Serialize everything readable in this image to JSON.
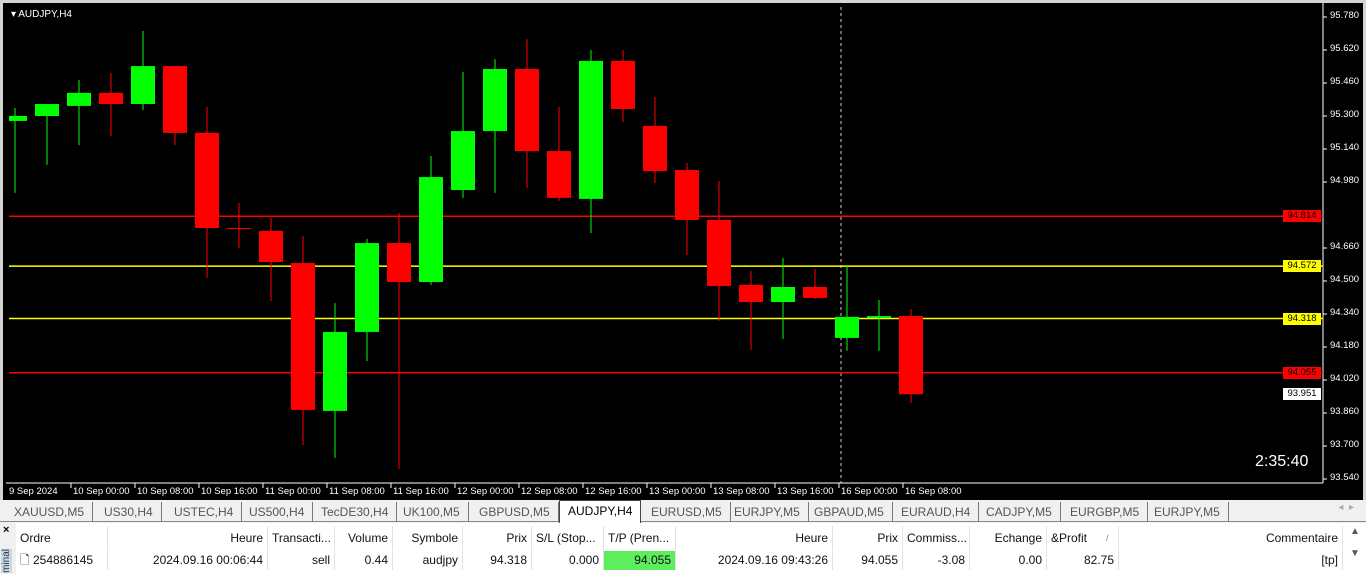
{
  "chart": {
    "symbol_label": "AUDJPY,H4",
    "countdown": "2:35:40",
    "price_axis": [
      "95.780",
      "95.620",
      "95.460",
      "95.300",
      "95.140",
      "94.980",
      "94.660",
      "94.500",
      "94.340",
      "94.180",
      "94.020",
      "93.860",
      "93.700",
      "93.540"
    ],
    "time_axis": [
      "9 Sep 2024",
      "10 Sep 00:00",
      "10 Sep 08:00",
      "10 Sep 16:00",
      "11 Sep 00:00",
      "11 Sep 08:00",
      "11 Sep 16:00",
      "12 Sep 00:00",
      "12 Sep 08:00",
      "12 Sep 16:00",
      "13 Sep 00:00",
      "13 Sep 08:00",
      "13 Sep 16:00",
      "16 Sep 00:00",
      "16 Sep 08:00"
    ],
    "colors": {
      "bull": "#00ff00",
      "bear": "#ff0000",
      "background": "#000000",
      "level_red": "#ff0000",
      "level_yellow": "#ffff00"
    },
    "levels": [
      {
        "price": "94.814",
        "color": "#ff0000"
      },
      {
        "price": "94.572",
        "color": "#ffff00"
      },
      {
        "price": "94.318",
        "color": "#ffff00"
      },
      {
        "price": "94.055",
        "color": "#ff0000"
      }
    ],
    "current_price": "93.951",
    "crosshair_time": "16 Sep 00:00",
    "chart_data": {
      "type": "candlestick",
      "timeframe": "H4",
      "ylim": [
        93.54,
        95.78
      ],
      "ohlc": [
        [
          95.276,
          95.339,
          94.927,
          95.3
        ],
        [
          95.3,
          95.358,
          95.063,
          95.358
        ],
        [
          95.349,
          95.475,
          95.159,
          95.412
        ],
        [
          95.412,
          95.509,
          95.203,
          95.358
        ],
        [
          95.358,
          95.712,
          95.329,
          95.542
        ],
        [
          95.542,
          95.542,
          95.159,
          95.218
        ],
        [
          95.218,
          95.344,
          94.515,
          94.757
        ],
        [
          94.757,
          94.878,
          94.66,
          94.752
        ],
        [
          94.743,
          94.806,
          94.403,
          94.592
        ],
        [
          94.587,
          94.718,
          93.705,
          93.875
        ],
        [
          93.87,
          94.393,
          93.642,
          94.253
        ],
        [
          94.253,
          94.704,
          94.112,
          94.684
        ],
        [
          94.684,
          94.83,
          93.589,
          94.495
        ],
        [
          94.495,
          95.106,
          94.481,
          95.004
        ],
        [
          94.941,
          95.513,
          94.903,
          95.227
        ],
        [
          95.227,
          95.576,
          94.927,
          95.528
        ],
        [
          95.528,
          95.673,
          94.951,
          95.13
        ],
        [
          95.13,
          95.344,
          94.888,
          94.903
        ],
        [
          94.898,
          95.62,
          94.733,
          95.567
        ],
        [
          95.567,
          95.62,
          95.271,
          95.334
        ],
        [
          95.252,
          95.392,
          94.975,
          95.033
        ],
        [
          95.038,
          95.072,
          94.626,
          94.796
        ],
        [
          94.796,
          94.985,
          94.306,
          94.476
        ],
        [
          94.481,
          94.549,
          94.166,
          94.398
        ],
        [
          94.398,
          94.612,
          94.219,
          94.471
        ],
        [
          94.471,
          94.558,
          94.413,
          94.418
        ],
        [
          94.224,
          94.573,
          94.161,
          94.326
        ],
        [
          94.321,
          94.408,
          94.161,
          94.33
        ],
        [
          94.33,
          94.364,
          93.909,
          93.951
        ]
      ]
    }
  },
  "tabs": [
    "XAUUSD,M5",
    "US30,H4",
    "USTEC,H4",
    "US500,H4",
    "TecDE30,H4",
    "UK100,M5",
    "GBPUSD,M5",
    "AUDJPY,H4",
    "EURUSD,M5",
    "EURJPY,M5",
    "GBPAUD,M5",
    "EURAUD,H4",
    "CADJPY,M5",
    "EURGBP,M5",
    "EURJPY,M5"
  ],
  "active_tab": "AUDJPY,H4",
  "terminal": {
    "close": "×",
    "side_label": "minal",
    "columns": [
      "Ordre",
      "Heure",
      "Transacti...",
      "Volume",
      "Symbole",
      "Prix",
      "S/L (Stop...",
      "T/P (Pren...",
      "Heure",
      "Prix",
      "Commiss...",
      "Echange",
      "&Profit",
      "Commentaire"
    ],
    "sort_indicator": "/",
    "rows": [
      [
        "254886145",
        "2024.09.16 00:06:44",
        "sell",
        "0.44",
        "audjpy",
        "94.318",
        "0.000",
        "94.055",
        "2024.09.16 09:43:26",
        "94.055",
        "-3.08",
        "0.00",
        "82.75",
        "[tp]"
      ]
    ]
  }
}
